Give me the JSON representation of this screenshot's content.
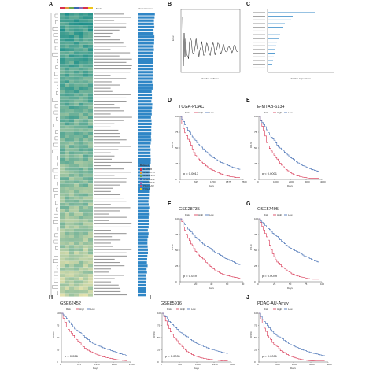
{
  "panel_labels": [
    "A",
    "B",
    "C",
    "D",
    "E",
    "F",
    "G",
    "H",
    "I",
    "J"
  ],
  "colors": {
    "high": "#d7304f",
    "low": "#3a67b0",
    "heat_high": "#1c8f8a",
    "heat_low": "#f4e8b0",
    "bar": "#2f86c6"
  },
  "panel_a": {
    "header_col": "Model",
    "header_score": "Mean C-index",
    "legend_title": "Dataset",
    "legend_items": [
      "E-MTAB",
      "GSE28735",
      "GSE57495",
      "GSE62452",
      "GSE85916",
      "PDAC-AU",
      "TCGA"
    ]
  },
  "panel_b": {
    "xlabel": "Number of Trees",
    "ylabel": "Error"
  },
  "panel_c": {
    "xlabel": "Variable Importance"
  },
  "km_legend": {
    "title": "Risk",
    "high": "High",
    "low": "Low"
  },
  "km_axes": {
    "ylabel": "OS %",
    "xlabel": "Days"
  },
  "km_panels": [
    {
      "label": "D",
      "title": "TCGA-PDAC",
      "pvalue": "p = 0.0017",
      "xmax": 2500
    },
    {
      "label": "E",
      "title": "E-MTAB-6134",
      "pvalue": "p < 0.0001",
      "xmax": 4000
    },
    {
      "label": "F",
      "title": "GSE28735",
      "pvalue": "p = 0.049",
      "xmax": 80
    },
    {
      "label": "G",
      "title": "GSE57495",
      "pvalue": "p = 0.0049",
      "xmax": 100
    },
    {
      "label": "H",
      "title": "GSE62452",
      "pvalue": "p = 0.026",
      "xmax": 2700
    },
    {
      "label": "I",
      "title": "GSE85916",
      "pvalue": "p = 0.0031",
      "xmax": 3000
    },
    {
      "label": "J",
      "title": "PDAC-AU-Array",
      "pvalue": "p = 0.0001",
      "xmax": 4000
    }
  ]
}
